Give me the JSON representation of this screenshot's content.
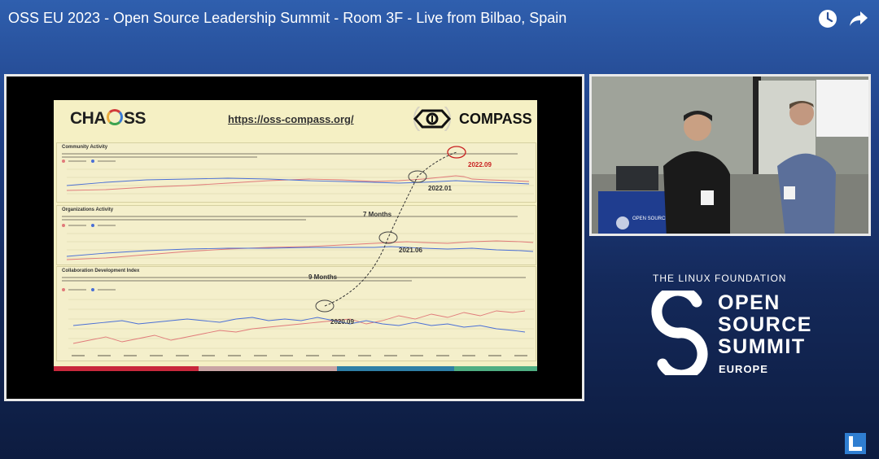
{
  "video": {
    "title": "OSS EU 2023 - Open Source Leadership Summit - Room 3F - Live from Bilbao, Spain",
    "icons": [
      "clock-icon",
      "share-icon"
    ]
  },
  "slide": {
    "chaoss_logo_prefix": "CHA",
    "chaoss_logo_suffix": "SS",
    "url": "https://oss-compass.org/",
    "compass_logo": "COMPASS",
    "panels": [
      {
        "title": "Community Activity"
      },
      {
        "title": "Organizations Activity"
      },
      {
        "title": "Collaboration Development Index"
      }
    ],
    "annotations": {
      "peak_2022_09": "2022.09",
      "mark_2022_01": "2022.01",
      "gap_7_months": "7 Months",
      "mark_2021_06": "2021.06",
      "gap_9_months": "9 Months",
      "mark_2020_09": "2020.09"
    }
  },
  "camera": {
    "banner": "OPEN SOURCE LEADERSHIP SUMMIT"
  },
  "branding": {
    "foundation": "THE LINUX FOUNDATION",
    "line1": "OPEN",
    "line2": "SOURCE",
    "line3": "SUMMIT",
    "region": "EUROPE"
  },
  "colors": {
    "background_top": "#2f5fae",
    "background_bottom": "#0d1c40",
    "slide_bg": "#f5f0c4",
    "series_blue": "#4a6fd6",
    "series_red": "#e07a7a",
    "annotation_red": "#c81f1f"
  }
}
